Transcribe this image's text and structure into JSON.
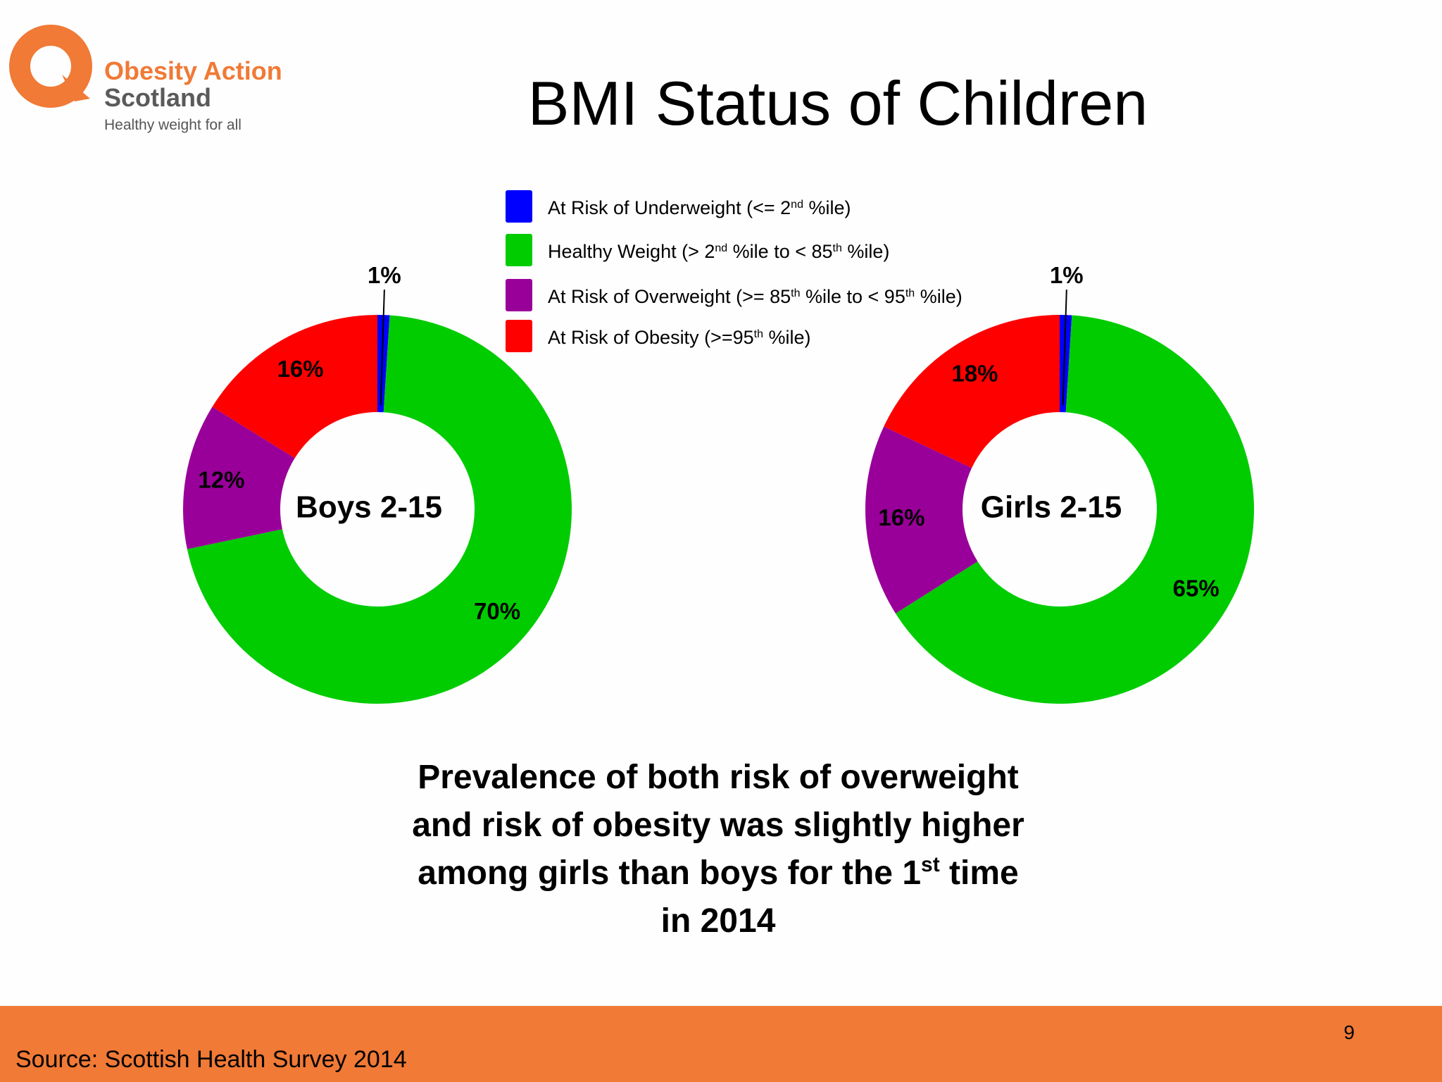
{
  "logo": {
    "name_line1": "Obesity Action",
    "name_line2": "Scotland",
    "tagline": "Healthy weight for all",
    "color": "#f07a36"
  },
  "title": "BMI Status of Children",
  "legend": [
    {
      "base": "At Risk of Underweight (<= 2",
      "sup": "nd",
      "rest": " %ile)",
      "sup2": "",
      "rest2": "",
      "color": "#0000ff"
    },
    {
      "base": "Healthy Weight (> 2",
      "sup": "nd",
      "rest": " %ile to < 85",
      "sup2": "th",
      "rest2": " %ile)",
      "color": "#00cc00"
    },
    {
      "base": "At Risk of Overweight (>= 85",
      "sup": "th",
      "rest": " %ile to < 95",
      "sup2": "th",
      "rest2": " %ile)",
      "color": "#990099"
    },
    {
      "base": "At Risk of Obesity (>=95",
      "sup": "th",
      "rest": " %ile)",
      "sup2": "",
      "rest2": "",
      "color": "#ff0000"
    }
  ],
  "chart_data": [
    {
      "type": "pie",
      "variant": "donut",
      "center_label": "Boys 2-15",
      "categories": [
        "At Risk of Underweight",
        "Healthy Weight",
        "At Risk of Overweight",
        "At Risk of Obesity"
      ],
      "values": [
        1,
        70,
        12,
        16
      ],
      "labels": [
        "1%",
        "70%",
        "12%",
        "16%"
      ],
      "colors": [
        "#0000ff",
        "#00cc00",
        "#990099",
        "#ff0000"
      ],
      "legend_position": "top"
    },
    {
      "type": "pie",
      "variant": "donut",
      "center_label": "Girls 2-15",
      "categories": [
        "At Risk of Underweight",
        "Healthy Weight",
        "At Risk of Overweight",
        "At Risk of Obesity"
      ],
      "values": [
        1,
        65,
        16,
        18
      ],
      "labels": [
        "1%",
        "65%",
        "16%",
        "18%"
      ],
      "colors": [
        "#0000ff",
        "#00cc00",
        "#990099",
        "#ff0000"
      ],
      "legend_position": "top"
    }
  ],
  "callout": {
    "line1": "Prevalence of both risk of overweight",
    "line2": "and risk of obesity was slightly higher",
    "line3_a": "among girls than boys for the 1",
    "line3_sup": "st",
    "line3_b": " time",
    "line4": "in 2014"
  },
  "footer": {
    "source": "Source: Scottish Health Survey 2014",
    "page_number": "9",
    "color": "#f07a36"
  }
}
